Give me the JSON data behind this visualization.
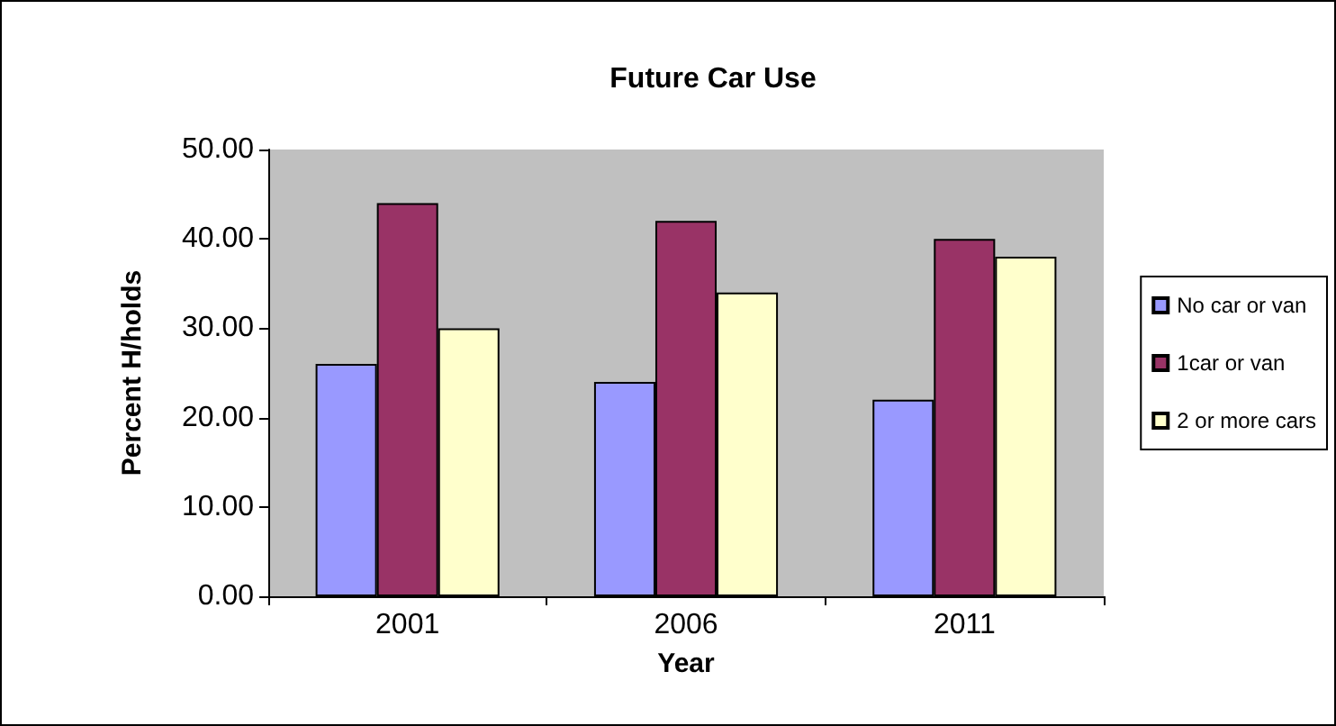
{
  "chart_data": {
    "type": "bar",
    "title": "Future Car Use",
    "xlabel": "Year",
    "ylabel": "Percent H/holds",
    "categories": [
      "2001",
      "2006",
      "2011"
    ],
    "series": [
      {
        "name": "No car or van",
        "color": "#9999ff",
        "values": [
          26,
          24,
          22
        ]
      },
      {
        "name": "1car or van",
        "color": "#993366",
        "values": [
          44,
          42,
          40
        ]
      },
      {
        "name": "2 or more cars",
        "color": "#ffffcc",
        "values": [
          30,
          34,
          38
        ]
      }
    ],
    "ylim": [
      0,
      50
    ],
    "yticks": [
      {
        "value": 0,
        "label": "0.00"
      },
      {
        "value": 10,
        "label": "10.00"
      },
      {
        "value": 20,
        "label": "20.00"
      },
      {
        "value": 30,
        "label": "30.00"
      },
      {
        "value": 40,
        "label": "40.00"
      },
      {
        "value": 50,
        "label": "50.00"
      }
    ],
    "grid": false,
    "legend": "right"
  }
}
